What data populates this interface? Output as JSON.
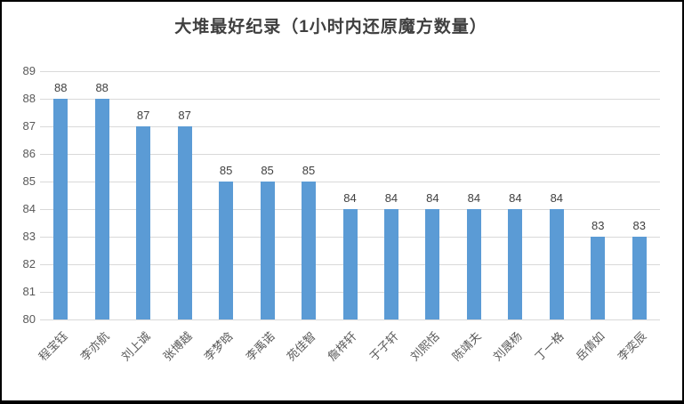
{
  "window": {
    "background": "#ffffff",
    "border_color": "#000000"
  },
  "chart_data": {
    "type": "bar",
    "title": "大堆最好纪录（1小时内还原魔方数量）",
    "categories": [
      "程宝钰",
      "李亦航",
      "刘上诚",
      "张博越",
      "李梦晗",
      "李禹诺",
      "苑佳智",
      "詹梓轩",
      "于子轩",
      "刘熙恬",
      "陈靖夫",
      "刘晟杨",
      "丁一格",
      "岳倩如",
      "李奕辰"
    ],
    "values": [
      88,
      88,
      87,
      87,
      85,
      85,
      85,
      84,
      84,
      84,
      84,
      84,
      84,
      83,
      83
    ],
    "xlabel": "",
    "ylabel": "",
    "ylim": [
      80,
      89
    ],
    "yticks": [
      80,
      81,
      82,
      83,
      84,
      85,
      86,
      87,
      88,
      89
    ],
    "grid": true,
    "legend": false,
    "data_labels": true,
    "bar_color": "#5b9bd5",
    "gridline_color": "#d9d9d9",
    "title_color": "#3f3f3f",
    "axis_text_color": "#595959",
    "data_label_color": "#404040"
  }
}
